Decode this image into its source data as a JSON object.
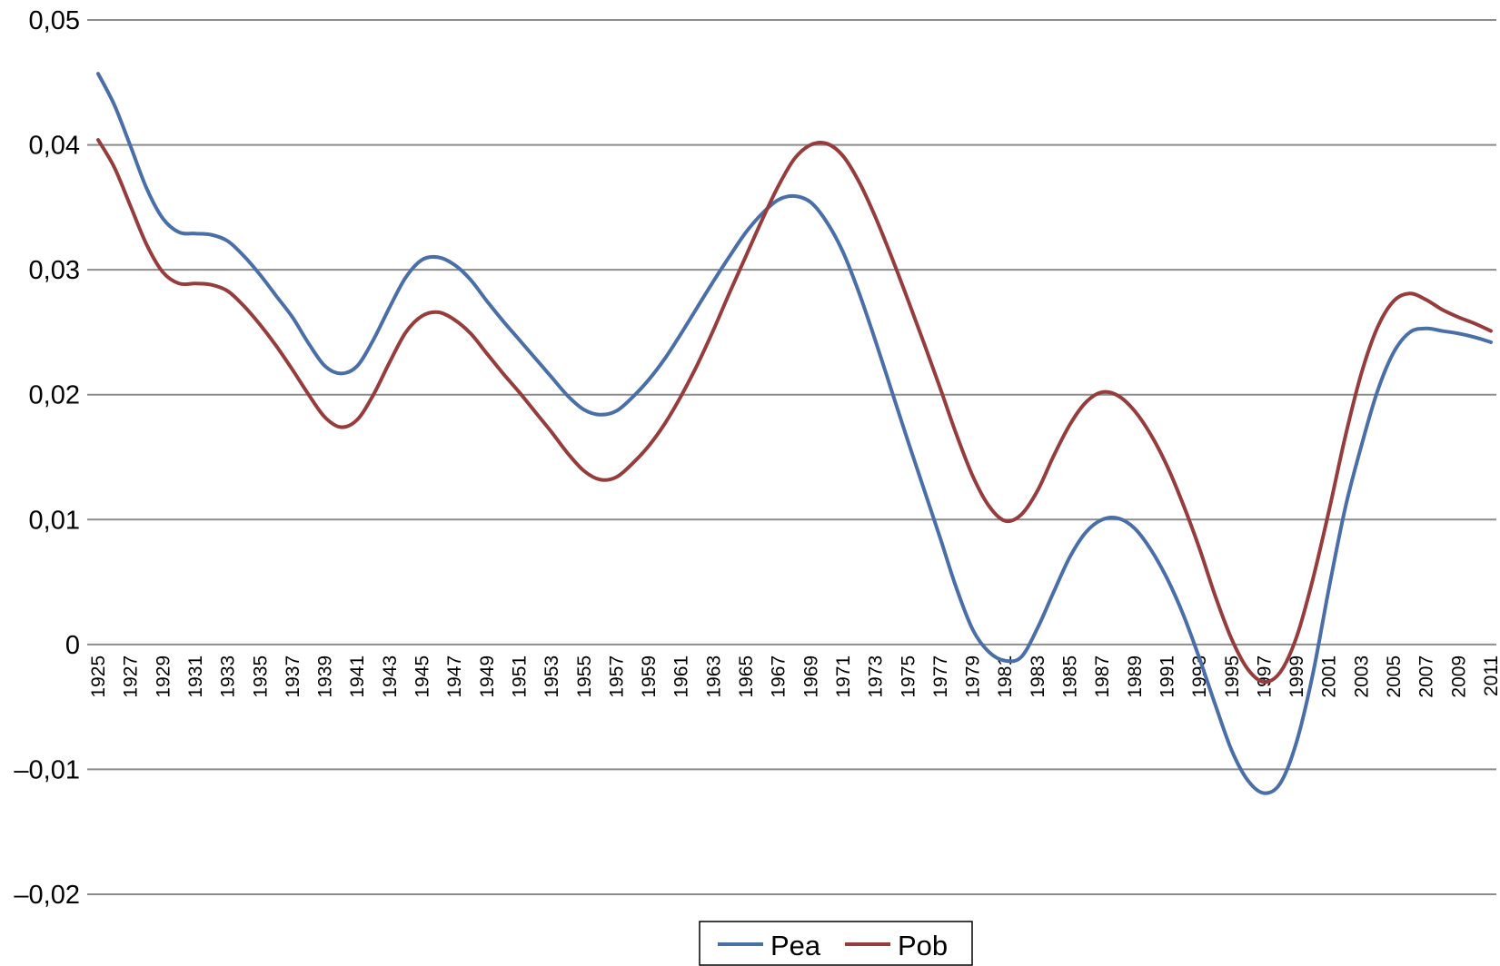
{
  "chart_data": {
    "type": "line",
    "title": "",
    "xlabel": "",
    "ylabel": "",
    "ylim": [
      -0.02,
      0.05
    ],
    "yticks": [
      {
        "value": 0.05,
        "label": "0,05"
      },
      {
        "value": 0.04,
        "label": "0,04"
      },
      {
        "value": 0.03,
        "label": "0,03"
      },
      {
        "value": 0.02,
        "label": "0,02"
      },
      {
        "value": 0.01,
        "label": "0,01"
      },
      {
        "value": 0,
        "label": "0"
      },
      {
        "value": -0.01,
        "label": "–0,01"
      },
      {
        "value": -0.02,
        "label": "–0,02"
      }
    ],
    "grid": true,
    "legend": "bottom",
    "x": [
      1925,
      1926,
      1927,
      1928,
      1929,
      1930,
      1931,
      1932,
      1933,
      1934,
      1935,
      1936,
      1937,
      1938,
      1939,
      1940,
      1941,
      1942,
      1943,
      1944,
      1945,
      1946,
      1947,
      1948,
      1949,
      1950,
      1951,
      1952,
      1953,
      1954,
      1955,
      1956,
      1957,
      1958,
      1959,
      1960,
      1961,
      1962,
      1963,
      1964,
      1965,
      1966,
      1967,
      1968,
      1969,
      1970,
      1971,
      1972,
      1973,
      1974,
      1975,
      1976,
      1977,
      1978,
      1979,
      1980,
      1981,
      1982,
      1983,
      1984,
      1985,
      1986,
      1987,
      1988,
      1989,
      1990,
      1991,
      1992,
      1993,
      1994,
      1995,
      1996,
      1997,
      1998,
      1999,
      2000,
      2001,
      2002,
      2003,
      2004,
      2005,
      2006,
      2007,
      2008,
      2009,
      2010,
      2011
    ],
    "xticks": [
      "1925",
      "1927",
      "1929",
      "1931",
      "1933",
      "1935",
      "1937",
      "1939",
      "1941",
      "1943",
      "1945",
      "1947",
      "1949",
      "1951",
      "1953",
      "1955",
      "1957",
      "1959",
      "1961",
      "1963",
      "1965",
      "1967",
      "1969",
      "1971",
      "1973",
      "1975",
      "1977",
      "1979",
      "1981",
      "1983",
      "1985",
      "1987",
      "1989",
      "1991",
      "1993",
      "1995",
      "1997",
      "1999",
      "2001",
      "2003",
      "2005",
      "2007",
      "2009",
      "2011"
    ],
    "series": [
      {
        "name": "Pea",
        "color": "#4a6fa8",
        "values": [
          0.0457,
          0.0432,
          0.0399,
          0.0365,
          0.0341,
          0.033,
          0.0329,
          0.0328,
          0.0323,
          0.0311,
          0.0296,
          0.0279,
          0.0262,
          0.0241,
          0.0223,
          0.0217,
          0.0223,
          0.0244,
          0.027,
          0.0294,
          0.0308,
          0.031,
          0.0304,
          0.0292,
          0.0275,
          0.0259,
          0.0244,
          0.0229,
          0.0214,
          0.0199,
          0.0188,
          0.0184,
          0.0187,
          0.0198,
          0.0212,
          0.0229,
          0.0249,
          0.027,
          0.0291,
          0.0311,
          0.033,
          0.0345,
          0.0356,
          0.0359,
          0.0354,
          0.0338,
          0.0314,
          0.0281,
          0.0243,
          0.0203,
          0.0163,
          0.0124,
          0.0085,
          0.0045,
          0.0012,
          -0.0006,
          -0.0013,
          -0.001,
          0.0013,
          0.0042,
          0.007,
          0.009,
          0.01,
          0.0101,
          0.0093,
          0.0076,
          0.0053,
          0.0024,
          -0.0011,
          -0.0049,
          -0.0085,
          -0.0109,
          -0.0119,
          -0.0111,
          -0.0078,
          -0.0024,
          0.0045,
          0.0109,
          0.0159,
          0.0203,
          0.0234,
          0.025,
          0.0253,
          0.0251,
          0.0249,
          0.0246,
          0.0242
        ]
      },
      {
        "name": "Pob",
        "color": "#963c3c",
        "values": [
          0.0404,
          0.0382,
          0.0351,
          0.032,
          0.0298,
          0.0289,
          0.0289,
          0.0288,
          0.0283,
          0.0271,
          0.0256,
          0.0239,
          0.022,
          0.02,
          0.0182,
          0.0174,
          0.018,
          0.02,
          0.0226,
          0.025,
          0.0263,
          0.0266,
          0.026,
          0.0249,
          0.0233,
          0.0217,
          0.0202,
          0.0186,
          0.017,
          0.0153,
          0.0139,
          0.0132,
          0.0134,
          0.0145,
          0.0159,
          0.0177,
          0.0199,
          0.0224,
          0.0252,
          0.0282,
          0.0311,
          0.034,
          0.0367,
          0.0389,
          0.04,
          0.0401,
          0.0391,
          0.037,
          0.0342,
          0.031,
          0.0276,
          0.0241,
          0.0205,
          0.0168,
          0.0135,
          0.0111,
          0.0099,
          0.0104,
          0.0123,
          0.0151,
          0.0176,
          0.0194,
          0.0202,
          0.0199,
          0.0187,
          0.0168,
          0.0143,
          0.0112,
          0.0077,
          0.0038,
          0.0004,
          -0.002,
          -0.003,
          -0.0022,
          0.0006,
          0.0052,
          0.0107,
          0.0166,
          0.0217,
          0.0254,
          0.0275,
          0.0281,
          0.0276,
          0.0268,
          0.0262,
          0.0257,
          0.0251
        ]
      }
    ]
  }
}
